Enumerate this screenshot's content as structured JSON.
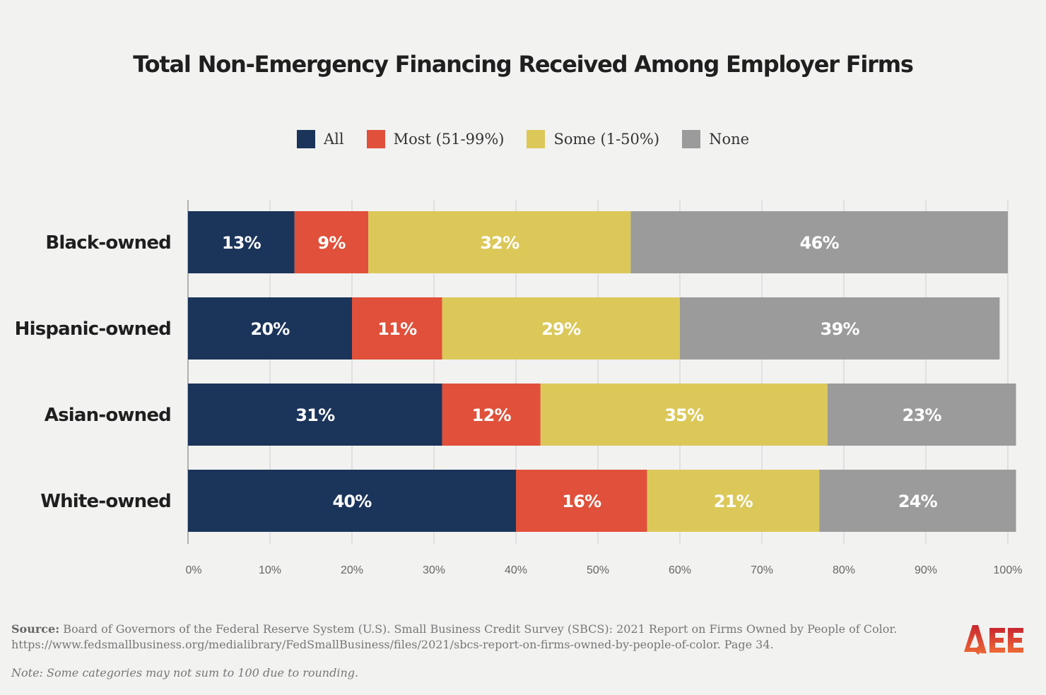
{
  "chart_data": {
    "type": "bar",
    "orientation": "horizontal",
    "stacked": true,
    "title": "Total Non-Emergency Financing Received Among Employer Firms",
    "categories": [
      "Black-owned",
      "Hispanic-owned",
      "Asian-owned",
      "White-owned"
    ],
    "series": [
      {
        "name": "All",
        "color": "#1b345a",
        "values": [
          13,
          20,
          31,
          40
        ]
      },
      {
        "name": "Most (51-99%)",
        "color": "#e0503a",
        "values": [
          9,
          11,
          12,
          16
        ]
      },
      {
        "name": "Some (1-50%)",
        "color": "#dbc859",
        "values": [
          32,
          29,
          35,
          21
        ]
      },
      {
        "name": "None",
        "color": "#9b9b9b",
        "values": [
          46,
          39,
          23,
          24
        ]
      }
    ],
    "xlim": [
      0,
      100
    ],
    "xticks": [
      "0%",
      "10%",
      "20%",
      "30%",
      "40%",
      "50%",
      "60%",
      "70%",
      "80%",
      "90%",
      "100%"
    ],
    "grid": true,
    "legend_position": "top"
  },
  "source_label": "Source:",
  "source_text": "Board of Governors of the Federal Reserve System (U.S). Small Business Credit Survey (SBCS): 2021 Report on Firms Owned by People of Color.",
  "source_url": "https://www.fedsmallbusiness.org/medialibrary/FedSmallBusiness/files/2021/sbcs-report-on-firms-owned-by-people-of-color. Page 34.",
  "note": "Note: Some categories may not sum to 100 due to rounding.",
  "logo_text": "AEE"
}
